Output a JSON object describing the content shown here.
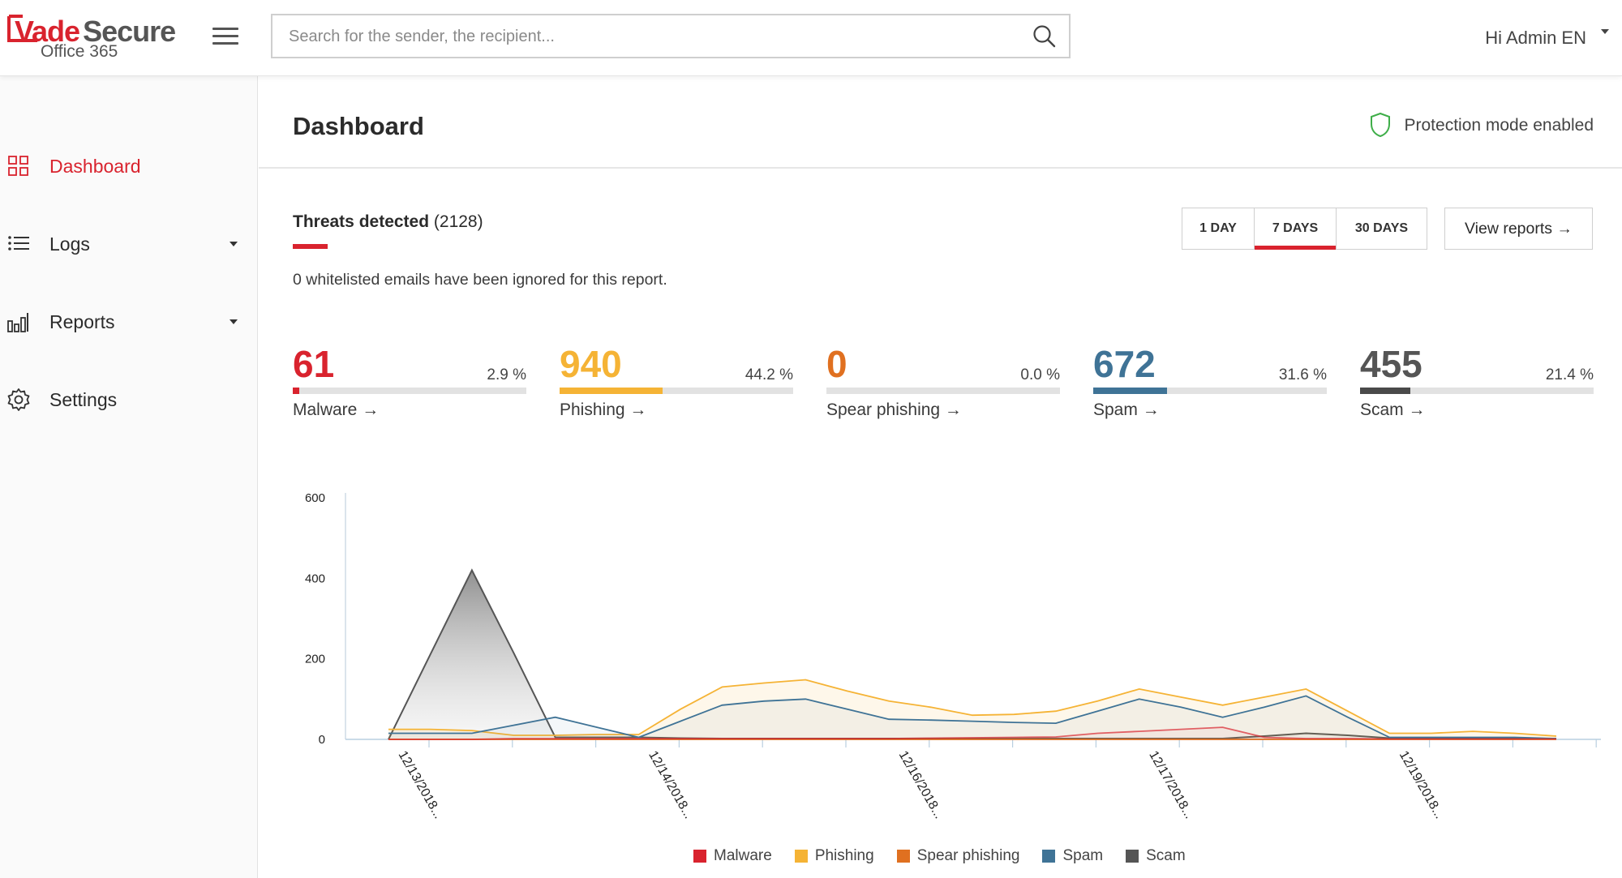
{
  "header": {
    "logo_brand": "Vade",
    "logo_brand2": "Secure",
    "logo_sub": "Office 365",
    "search_placeholder": "Search for the sender, the recipient...",
    "user_label": "Hi Admin EN"
  },
  "sidebar": {
    "items": [
      {
        "label": "Dashboard",
        "icon": "dashboard-grid-icon",
        "active": true
      },
      {
        "label": "Logs",
        "icon": "list-icon",
        "has_caret": true
      },
      {
        "label": "Reports",
        "icon": "bar-chart-icon",
        "has_caret": true
      },
      {
        "label": "Settings",
        "icon": "gear-icon"
      }
    ]
  },
  "main": {
    "title": "Dashboard",
    "protection_status": "Protection mode enabled",
    "threats_title": "Threats detected",
    "threats_count": "(2128)",
    "whitelist_note": "0 whitelisted emails have been ignored for this report.",
    "ranges": [
      {
        "label": "1 DAY",
        "active": false
      },
      {
        "label": "7 DAYS",
        "active": true
      },
      {
        "label": "30 DAYS",
        "active": false
      }
    ],
    "view_reports_label": "View reports →",
    "stats": [
      {
        "value": "61",
        "percent": "2.9 %",
        "fraction": 0.029,
        "label": "Malware →",
        "color": "#d9232e"
      },
      {
        "value": "940",
        "percent": "44.2 %",
        "fraction": 0.442,
        "label": "Phishing →",
        "color": "#f5b335"
      },
      {
        "value": "0",
        "percent": "0.0 %",
        "fraction": 0.0,
        "label": "Spear phishing →",
        "color": "#e07020"
      },
      {
        "value": "672",
        "percent": "31.6 %",
        "fraction": 0.316,
        "label": "Spam →",
        "color": "#3f7396"
      },
      {
        "value": "455",
        "percent": "21.4 %",
        "fraction": 0.214,
        "label": "Scam →",
        "color": "#4a4a4a"
      }
    ]
  },
  "colors": {
    "accent": "#d9232e",
    "malware": "#d9232e",
    "phishing": "#f5b335",
    "spear_phishing": "#e07020",
    "spam": "#3f7396",
    "scam": "#555555"
  },
  "chart_data": {
    "type": "area",
    "ylim": [
      0,
      600
    ],
    "yticks": [
      0,
      200,
      400,
      600
    ],
    "x_tick_labels": [
      "12/13/2018...",
      "12/14/2018...",
      "12/16/2018...",
      "12/17/2018...",
      "12/19/2018..."
    ],
    "x_tick_label_indices": [
      0,
      6,
      12,
      18,
      24
    ],
    "legend": [
      "Malware",
      "Phishing",
      "Spear phishing",
      "Spam",
      "Scam"
    ],
    "legend_position": "bottom",
    "series": [
      {
        "name": "Malware",
        "color": "#d9232e",
        "values": [
          0,
          0,
          0,
          2,
          2,
          2,
          2,
          2,
          2,
          2,
          2,
          2,
          2,
          3,
          4,
          5,
          6,
          15,
          20,
          25,
          30,
          5,
          2,
          2,
          1,
          1,
          1,
          1,
          1
        ]
      },
      {
        "name": "Phishing",
        "color": "#f5b335",
        "values": [
          25,
          25,
          22,
          10,
          10,
          12,
          12,
          75,
          130,
          140,
          148,
          120,
          95,
          80,
          60,
          62,
          70,
          95,
          125,
          105,
          85,
          105,
          125,
          70,
          15,
          15,
          20,
          15,
          8
        ]
      },
      {
        "name": "Spear phishing",
        "color": "#e07020",
        "values": [
          0,
          0,
          0,
          0,
          0,
          0,
          0,
          0,
          0,
          0,
          0,
          0,
          0,
          0,
          0,
          0,
          0,
          0,
          0,
          0,
          0,
          0,
          0,
          0,
          0,
          0,
          0,
          0,
          0
        ]
      },
      {
        "name": "Spam",
        "color": "#3f7396",
        "values": [
          15,
          15,
          15,
          35,
          55,
          30,
          5,
          45,
          85,
          95,
          100,
          75,
          50,
          48,
          45,
          42,
          40,
          70,
          100,
          80,
          55,
          80,
          108,
          55,
          5,
          5,
          5,
          5,
          2
        ]
      },
      {
        "name": "Scam",
        "color": "#555555",
        "values": [
          0,
          210,
          420,
          215,
          5,
          5,
          5,
          3,
          2,
          2,
          2,
          2,
          2,
          2,
          2,
          2,
          2,
          2,
          2,
          2,
          2,
          8,
          15,
          10,
          3,
          3,
          2,
          2,
          2
        ]
      }
    ]
  }
}
